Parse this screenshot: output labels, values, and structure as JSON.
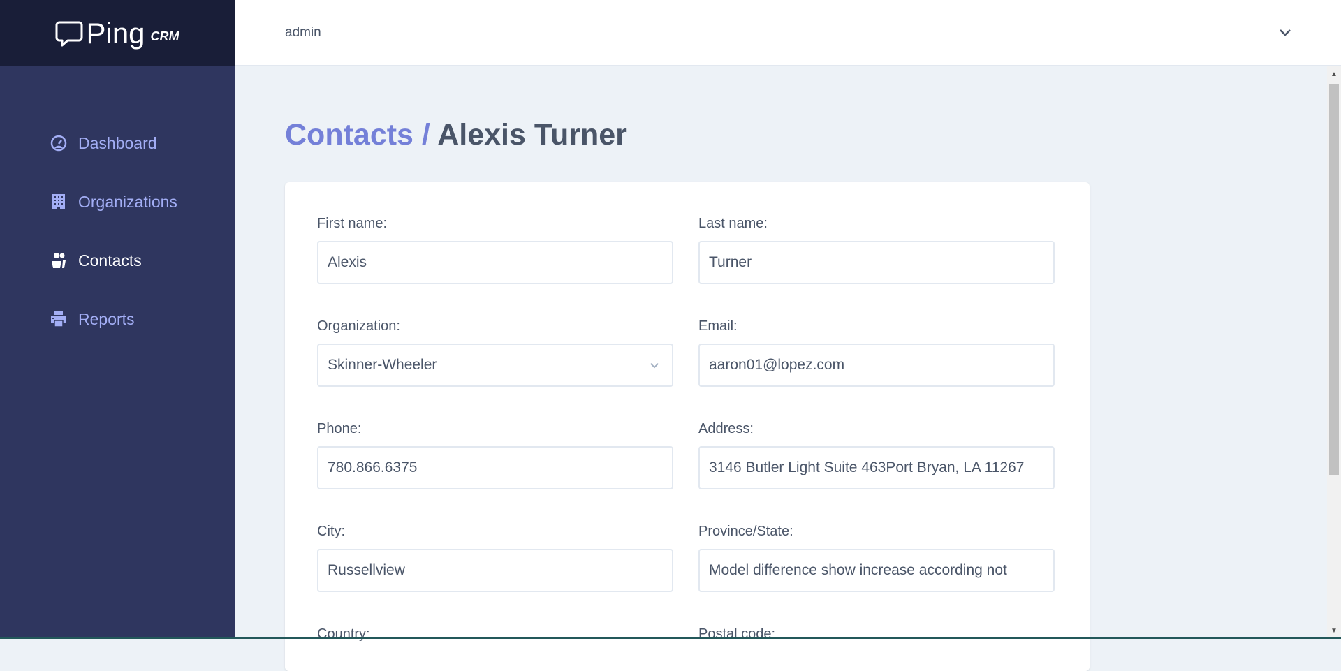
{
  "brand": {
    "name": "Ping",
    "suffix": "CRM"
  },
  "header": {
    "user": "admin"
  },
  "sidebar": {
    "items": [
      {
        "label": "Dashboard",
        "icon": "dashboard-icon",
        "active": false
      },
      {
        "label": "Organizations",
        "icon": "building-icon",
        "active": false
      },
      {
        "label": "Contacts",
        "icon": "users-icon",
        "active": true
      },
      {
        "label": "Reports",
        "icon": "printer-icon",
        "active": false
      }
    ]
  },
  "page": {
    "breadcrumb": "Contacts",
    "separator": " /",
    "title": " Alexis Turner"
  },
  "form": {
    "first_name": {
      "label": "First name:",
      "value": "Alexis"
    },
    "last_name": {
      "label": "Last name:",
      "value": "Turner"
    },
    "organization": {
      "label": "Organization:",
      "value": "Skinner-Wheeler"
    },
    "email": {
      "label": "Email:",
      "value": "aaron01@lopez.com"
    },
    "phone": {
      "label": "Phone:",
      "value": "780.866.6375"
    },
    "address": {
      "label": "Address:",
      "value": "3146 Butler Light Suite 463Port Bryan, LA 11267"
    },
    "city": {
      "label": "City:",
      "value": "Russellview"
    },
    "region": {
      "label": "Province/State:",
      "value": "Model difference show increase according not"
    },
    "country": {
      "label": "Country:"
    },
    "postal_code": {
      "label": "Postal code:"
    }
  },
  "colors": {
    "sidebar": "#2f365f",
    "logo_bg": "#191e38",
    "accent": "#7480d8",
    "nav_text": "#a3aef5"
  }
}
